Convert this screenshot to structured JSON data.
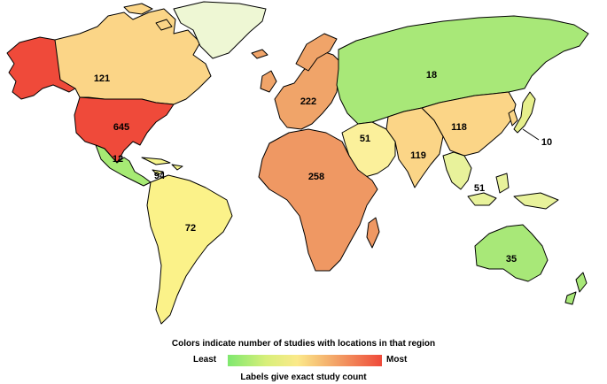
{
  "legend": {
    "title": "Colors indicate number of studies with locations in that region",
    "least_label": "Least",
    "most_label": "Most",
    "note": "Labels give exact study count"
  },
  "colors": {
    "least": "#7fe86f",
    "low": "#d8ef7a",
    "mid": "#fbe98a",
    "high": "#f3a367",
    "most": "#ef4a3a"
  },
  "regions": [
    {
      "name": "Alaska",
      "count": "",
      "color": "#ef4a3a"
    },
    {
      "name": "Canada",
      "count": "121",
      "color": "#fbd587"
    },
    {
      "name": "United States",
      "count": "645",
      "color": "#ef4a3a"
    },
    {
      "name": "Central America",
      "count": "12",
      "color": "#a6ea74"
    },
    {
      "name": "Caribbean",
      "count": "94",
      "color": "#f6f58c"
    },
    {
      "name": "South America",
      "count": "72",
      "color": "#fbf289"
    },
    {
      "name": "Greenland",
      "count": "",
      "color": "#eef7d4"
    },
    {
      "name": "Europe",
      "count": "222",
      "color": "#f0a469"
    },
    {
      "name": "Africa",
      "count": "258",
      "color": "#ef9863"
    },
    {
      "name": "Middle East",
      "count": "51",
      "color": "#fbf09b"
    },
    {
      "name": "Russia / Central Asia",
      "count": "18",
      "color": "#a8e878"
    },
    {
      "name": "South Asia",
      "count": "119",
      "color": "#fbd587"
    },
    {
      "name": "East Asia",
      "count": "118",
      "color": "#fbd587"
    },
    {
      "name": "Japan",
      "count": "10",
      "color": "#e6ef8c"
    },
    {
      "name": "Southeast Asia",
      "count": "51",
      "color": "#e8f29b"
    },
    {
      "name": "Australia",
      "count": "35",
      "color": "#a8e878"
    }
  ]
}
